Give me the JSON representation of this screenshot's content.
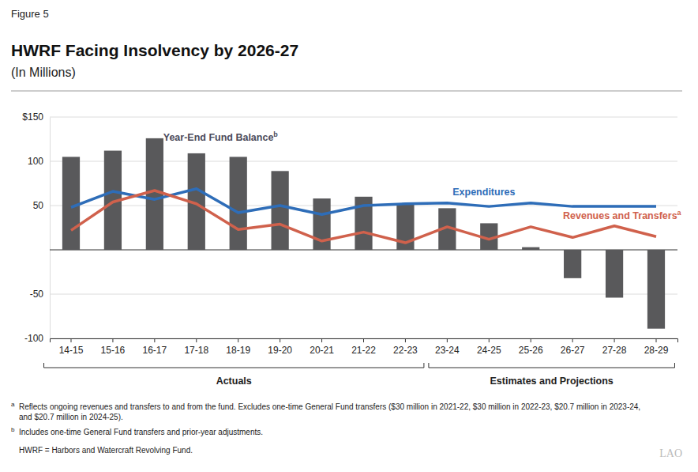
{
  "chart_data": {
    "type": "bar",
    "figure_label": "Figure 5",
    "title": "HWRF Facing Insolvency by 2026-27",
    "subtitle": "(In Millions)",
    "categories": [
      "14-15",
      "15-16",
      "16-17",
      "17-18",
      "18-19",
      "19-20",
      "20-21",
      "21-22",
      "22-23",
      "23-24",
      "24-25",
      "25-26",
      "26-27",
      "27-28",
      "28-29"
    ],
    "series": [
      {
        "name": "Year-End Fund Balance",
        "note": "b",
        "type": "bar",
        "color": "#59595b",
        "values": [
          105,
          112,
          126,
          109,
          105,
          89,
          58,
          60,
          52,
          47,
          30,
          3,
          -32,
          -54,
          -89
        ]
      },
      {
        "name": "Expenditures",
        "type": "line",
        "color": "#2e6db8",
        "values": [
          48,
          66,
          57,
          69,
          42,
          50,
          40,
          50,
          52,
          53,
          49,
          53,
          49,
          49,
          49
        ]
      },
      {
        "name": "Revenues and Transfers",
        "note": "a",
        "type": "line",
        "color": "#d0614c",
        "values": [
          22,
          54,
          67,
          52,
          23,
          29,
          10,
          20,
          8,
          26,
          12,
          26,
          14,
          27,
          15
        ]
      }
    ],
    "ylim": [
      -100,
      150
    ],
    "yticks": [
      -100,
      -50,
      50,
      100,
      {
        "value": 150,
        "label": "$150"
      }
    ],
    "grid": true,
    "groups": [
      {
        "label": "Actuals",
        "categories": [
          "14-15",
          "22-23"
        ]
      },
      {
        "label": "Estimates and Projections",
        "categories": [
          "23-24",
          "28-29"
        ]
      }
    ],
    "footnotes": [
      {
        "marker": "a",
        "lines": [
          "Reflects ongoing revenues and transfers to and from the fund. Excludes one-time General Fund transfers ($30 million in 2021-22, $30 million in 2022-23, $20.7 million in 2023-24,",
          "and $20.7 million in 2024-25)."
        ]
      },
      {
        "marker": "b",
        "lines": [
          "Includes one-time General Fund transfers and prior-year adjustments."
        ]
      }
    ],
    "source": "HWRF = Harbors and Watercraft Revolving Fund.",
    "logo": "LAO"
  }
}
